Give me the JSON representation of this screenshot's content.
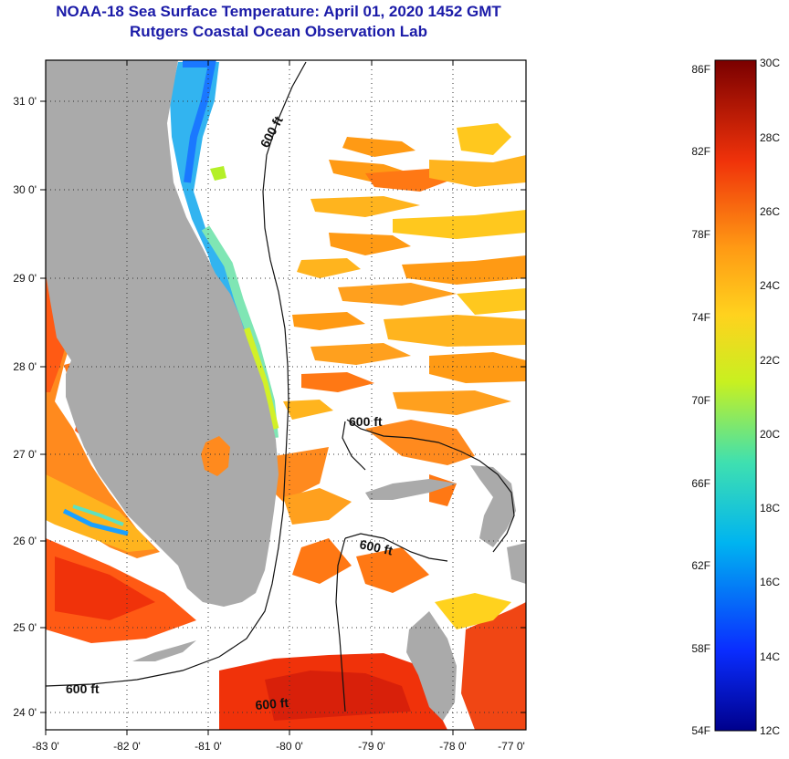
{
  "header": {
    "title": "NOAA-18 Sea Surface Temperature:  April 01, 2020 1452 GMT",
    "subtitle": "Rutgers Coastal Ocean Observation Lab"
  },
  "map": {
    "lat_labels": [
      "31 0'",
      "30 0'",
      "29 0'",
      "28 0'",
      "27 0'",
      "26 0'",
      "25 0'",
      "24 0'"
    ],
    "lon_labels": [
      "-83 0'",
      "-82 0'",
      "-81 0'",
      "-80 0'",
      "-79 0'",
      "-78 0'",
      "-77 0'"
    ],
    "isobath_labels": [
      "600 ft",
      "600 ft",
      "600 ft",
      "600 ft",
      "600 ft"
    ]
  },
  "colorbar": {
    "fahrenheit_labels": [
      "86F",
      "82F",
      "78F",
      "74F",
      "70F",
      "66F",
      "62F",
      "58F",
      "54F"
    ],
    "celsius_labels": [
      "30C",
      "28C",
      "26C",
      "24C",
      "22C",
      "20C",
      "18C",
      "16C",
      "14C",
      "12C"
    ]
  },
  "colors": {
    "title": "#1b1ba8",
    "land": "#aaaaaa",
    "cloud": "#ffffff"
  }
}
